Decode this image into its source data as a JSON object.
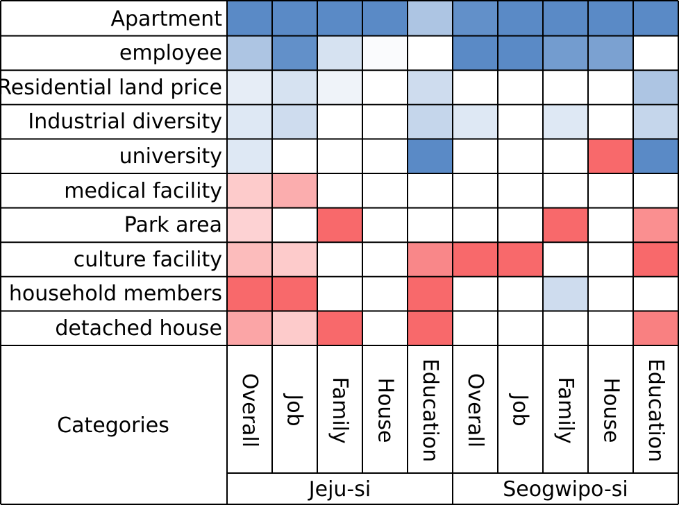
{
  "chart_data": {
    "type": "heatmap",
    "rows": [
      "Apartment",
      "employee",
      "Residential land price",
      "Industrial diversity",
      "university",
      "medical facility",
      "Park area",
      "culture facility",
      "household members",
      "detached house"
    ],
    "columns": [
      "Overall",
      "Job",
      "Family",
      "House",
      "Education",
      "Overall",
      "Job",
      "Family",
      "House",
      "Education"
    ],
    "groups": [
      {
        "name": "Jeju-si",
        "span": 5
      },
      {
        "name": "Seogwipo-si",
        "span": 5
      }
    ],
    "corner_label": "Categories",
    "colors": {
      "positive": "#5a8ac6",
      "negative": "#f8696b",
      "zero": "#ffffff",
      "grid": "#000000"
    },
    "values": [
      [
        1.0,
        1.0,
        1.0,
        1.0,
        0.5,
        0.95,
        1.0,
        1.0,
        1.0,
        1.0
      ],
      [
        0.5,
        0.95,
        0.25,
        0.03,
        0.0,
        1.0,
        1.0,
        0.85,
        0.8,
        0.0
      ],
      [
        0.15,
        0.25,
        0.1,
        0.0,
        0.3,
        0.0,
        0.0,
        0.0,
        0.0,
        0.5
      ],
      [
        0.2,
        0.3,
        0.0,
        0.0,
        0.35,
        0.2,
        0.0,
        0.2,
        0.0,
        0.35
      ],
      [
        0.2,
        0.0,
        0.0,
        0.0,
        1.0,
        0.0,
        0.0,
        0.0,
        -1.0,
        1.0
      ],
      [
        -0.35,
        -0.55,
        0.0,
        0.0,
        0.0,
        0.0,
        0.0,
        0.0,
        0.0,
        0.0
      ],
      [
        -0.3,
        0.0,
        -1.0,
        0.0,
        0.0,
        0.0,
        0.0,
        -1.0,
        0.0,
        -0.75
      ],
      [
        -0.45,
        -0.35,
        0.0,
        0.0,
        -0.8,
        -1.0,
        -1.0,
        0.0,
        0.0,
        -1.0
      ],
      [
        -1.0,
        -1.0,
        0.0,
        0.0,
        -1.0,
        0.0,
        0.0,
        0.3,
        0.0,
        0.0
      ],
      [
        -0.6,
        -0.35,
        -1.0,
        0.0,
        -1.0,
        0.0,
        0.0,
        0.0,
        0.0,
        -0.85
      ]
    ]
  }
}
